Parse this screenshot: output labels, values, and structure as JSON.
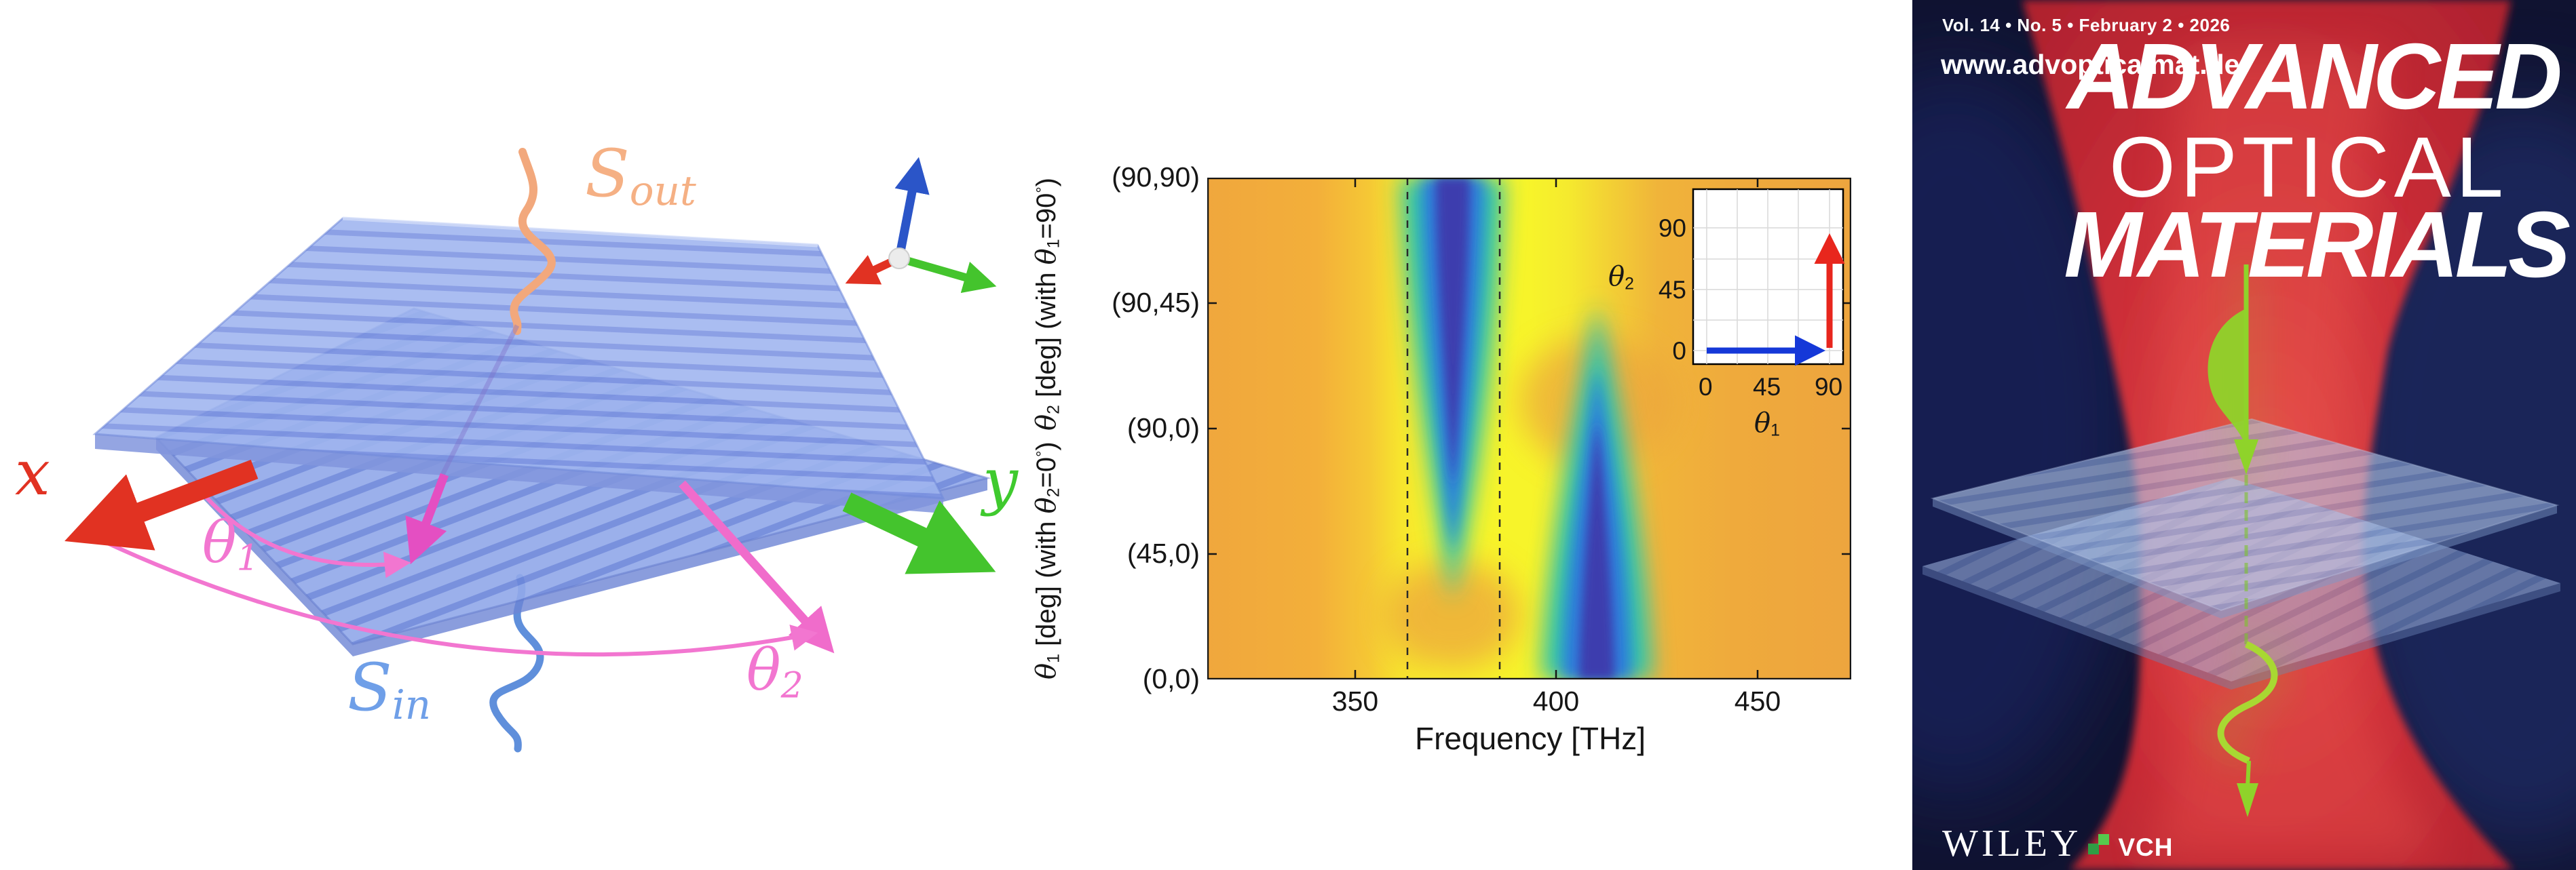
{
  "schematic": {
    "x_label": "x",
    "y_label": "y",
    "s_out": [
      [
        "n",
        "S"
      ],
      [
        "s",
        "out"
      ]
    ],
    "s_in": [
      [
        "n",
        "S"
      ],
      [
        "s",
        "in"
      ]
    ],
    "theta1": [
      [
        "n",
        "θ"
      ],
      [
        "s",
        "1"
      ]
    ],
    "theta2": [
      [
        "n",
        "θ"
      ],
      [
        "s",
        "2"
      ]
    ],
    "colors": {
      "x_axis_red": "#e13222",
      "y_axis_green": "#44c42d",
      "z_axis_blue": "#2b55c8",
      "rotation_pink": "#f06ccb",
      "rotation_magenta": "#e44fc2",
      "s_out_orange": "#f4ad7c",
      "s_in_blue": "#6a9ae4",
      "grating_blue": "#8fa7ea"
    }
  },
  "heatmap": {
    "xlabel": "Frequency [THz]",
    "xticks": [
      "350",
      "400",
      "450"
    ],
    "yticks": [
      "(90,90)",
      "(90,45)",
      "(90,0)",
      "(45,0)",
      "(0,0)"
    ],
    "ylabel_part1": [
      [
        "i",
        "θ"
      ],
      [
        "s",
        "1"
      ],
      [
        "n",
        " [deg] (with "
      ],
      [
        "i",
        "θ"
      ],
      [
        "s",
        "2"
      ],
      [
        "n",
        "=0"
      ],
      [
        "u",
        "°"
      ],
      [
        "n",
        ")"
      ]
    ],
    "ylabel_part2": [
      [
        "i",
        "θ"
      ],
      [
        "s",
        "2"
      ],
      [
        "n",
        " [deg] (with "
      ],
      [
        "i",
        "θ"
      ],
      [
        "s",
        "1"
      ],
      [
        "n",
        "=90"
      ],
      [
        "u",
        "°"
      ],
      [
        "n",
        ")"
      ]
    ],
    "inset": {
      "xlabel": [
        [
          "i",
          "θ"
        ],
        [
          "s",
          "1"
        ]
      ],
      "ylabel": [
        [
          "i",
          "θ"
        ],
        [
          "s",
          "2"
        ]
      ],
      "xticks": [
        "0",
        "45",
        "90"
      ],
      "yticks": [
        "90",
        "45",
        "0"
      ]
    }
  },
  "cover": {
    "issue_line": "Vol. 14 • No. 5 • February 2 • 2026",
    "url": "www.advopticalmat.de",
    "title_line1": "ADVANCED",
    "title_line2": "OPTICAL",
    "title_line3": "MATERIALS",
    "publisher_serif": "WILEY",
    "publisher_sans": "VCH",
    "colors": {
      "background_navy": "#101331",
      "beam_red": "#c62b34",
      "pulse_green": "#8fd32a",
      "title_white": "#ffffff"
    }
  },
  "chart_data": {
    "type": "heatmap",
    "title": "",
    "xlabel": "Frequency [THz]",
    "ylabel": "θ1 [deg] (with θ2=0°)  /  θ2 [deg] (with θ1=90°)",
    "xlim": [
      313,
      473
    ],
    "xticks": [
      350,
      400,
      450
    ],
    "ytick_labels": [
      "(0,0)",
      "(45,0)",
      "(90,0)",
      "(90,45)",
      "(90,90)"
    ],
    "y_axis_description": "composite angle sweep: lower half varies θ1 0→90° with θ2=0°, upper half varies θ2 0→90° with θ1=90°",
    "colormap": "parula (orange/yellow high transmission, blue resonance dips)",
    "series": [
      {
        "name": "resonance band 1",
        "center_frequency_THz": 374,
        "extent": "dark-blue dip strongest at top (90,90), tapers out near (45,0)"
      },
      {
        "name": "resonance band 2",
        "center_frequency_THz": 410,
        "extent": "dark-blue dip strongest at bottom (0,0), tapers out near (90,45)"
      }
    ],
    "dashed_reference_lines_THz": [
      363,
      386
    ],
    "grid": false,
    "legend": "none",
    "inset": {
      "position": "top-right",
      "xlabel": "θ1",
      "ylabel": "θ2",
      "xticks": [
        0,
        45,
        90
      ],
      "yticks": [
        0,
        45,
        90
      ],
      "arrows": [
        {
          "name": "θ1 sweep",
          "color": "#1538d8",
          "from": [
            0,
            0
          ],
          "to": [
            90,
            0
          ]
        },
        {
          "name": "θ2 sweep",
          "color": "#e8261d",
          "from": [
            90,
            0
          ],
          "to": [
            90,
            90
          ]
        }
      ]
    }
  }
}
